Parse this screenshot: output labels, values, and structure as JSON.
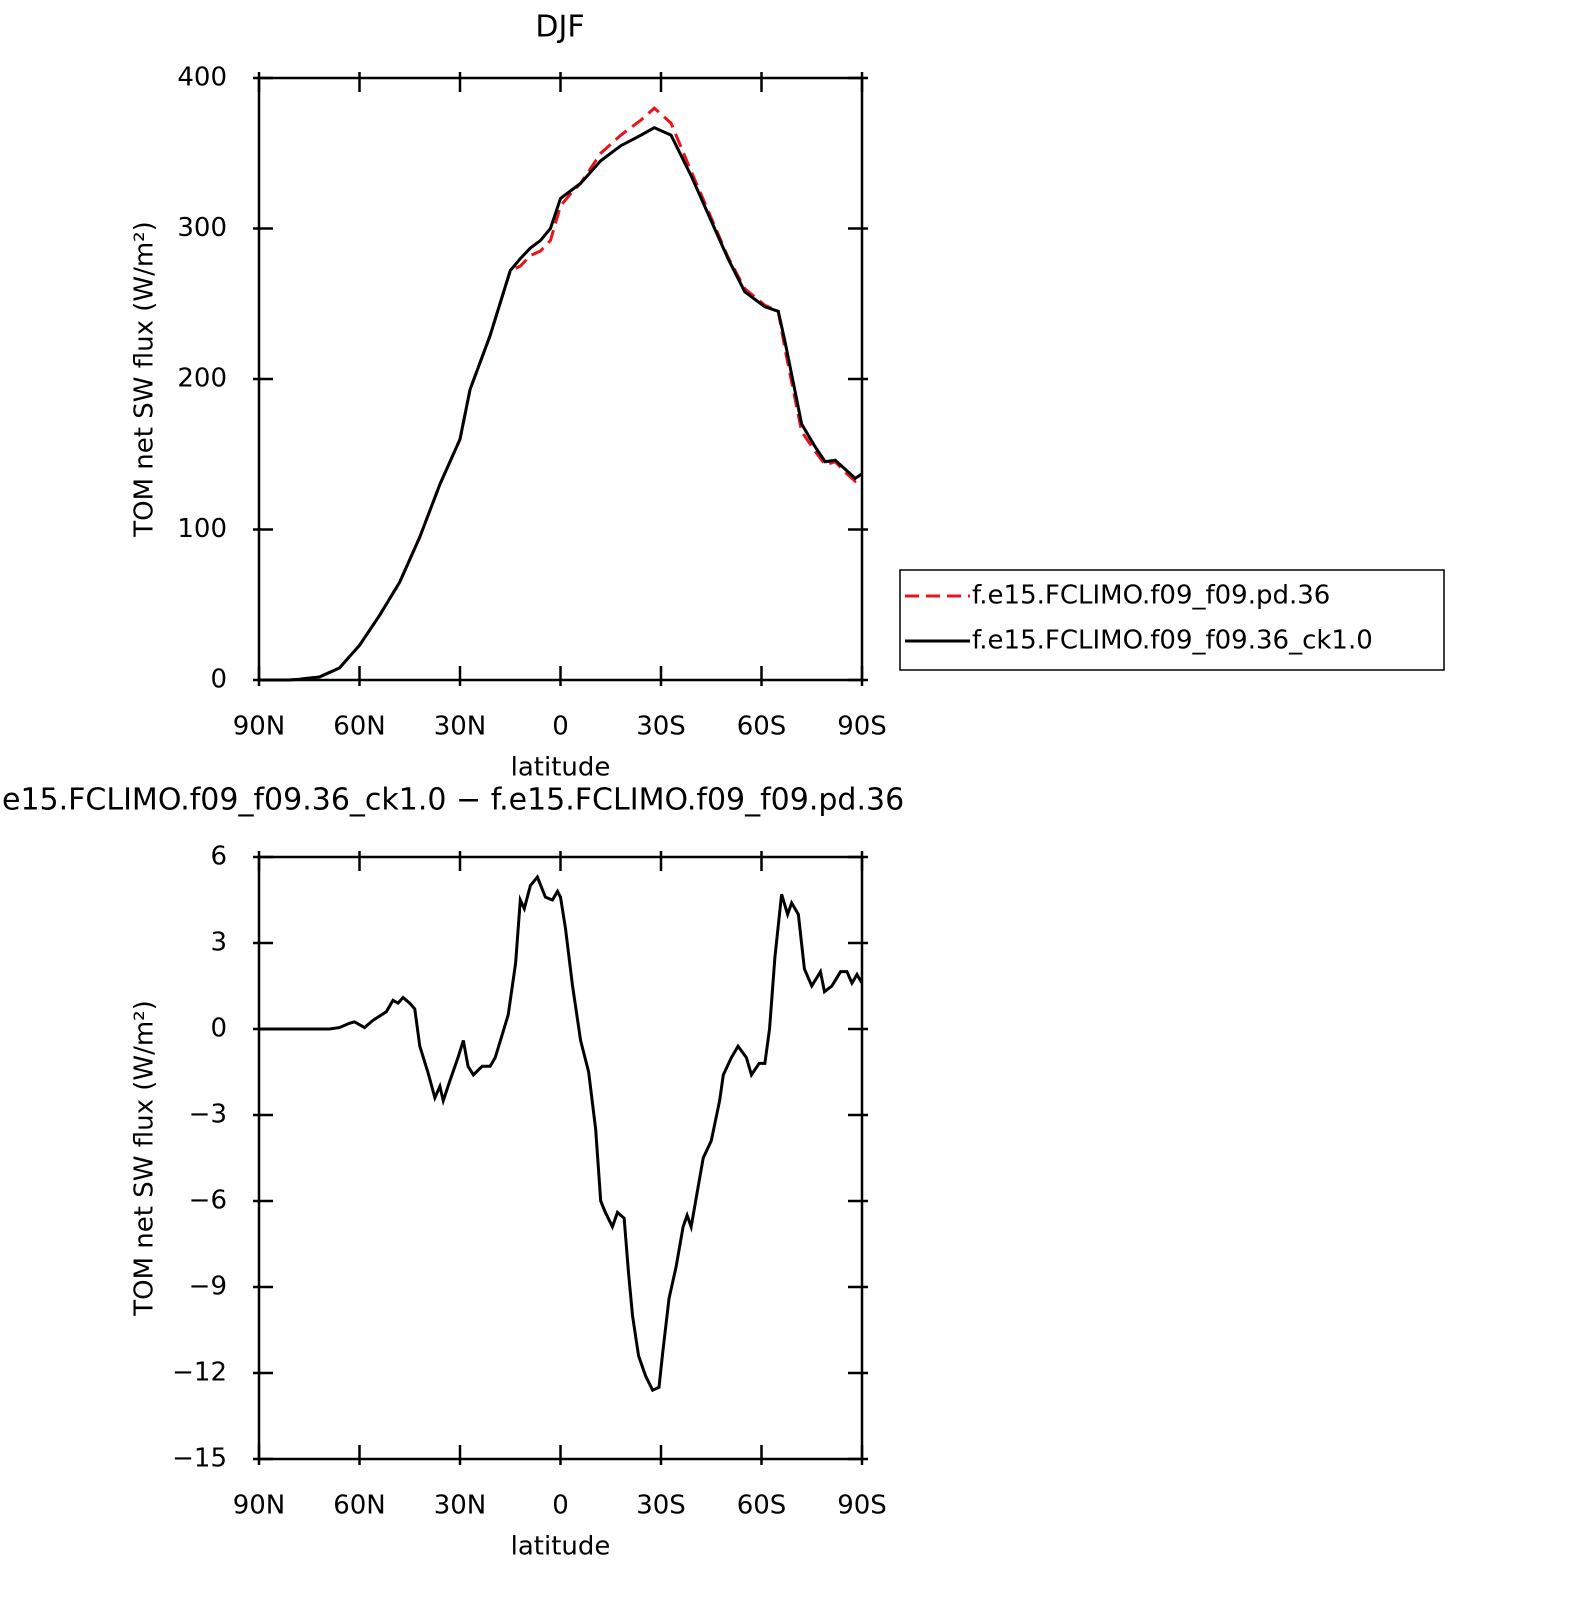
{
  "chart_data": [
    {
      "type": "line",
      "title": "DJF",
      "x_label": "latitude",
      "y_label": "TOM net SW flux (W/m²)",
      "xlim": [
        90,
        -90
      ],
      "xticks": [
        {
          "value": 90,
          "label": "90N"
        },
        {
          "value": 60,
          "label": "60N"
        },
        {
          "value": 30,
          "label": "30N"
        },
        0,
        {
          "value": -30,
          "label": "30S"
        },
        {
          "value": -60,
          "label": "60S"
        },
        {
          "value": -90,
          "label": "90S"
        }
      ],
      "ylim": [
        0,
        400
      ],
      "yticks": [
        0,
        100,
        200,
        300,
        400
      ],
      "legend": "right",
      "x": [
        90,
        81,
        78,
        72,
        66,
        60,
        54,
        48,
        42,
        36,
        30,
        27,
        21,
        15,
        12,
        9,
        6,
        3,
        0,
        -3,
        -6,
        -12,
        -18,
        -24,
        -28,
        -33,
        -39,
        -45,
        -50,
        -55,
        -61,
        -65,
        -67,
        -72,
        -76,
        -79,
        -82,
        -85,
        -88,
        -90
      ],
      "series": [
        {
          "name": "f.e15.FCLIMO.f09_f09.pd.36",
          "color": "#e8141a",
          "linestyle": "dashed",
          "values": [
            0,
            0,
            0.5,
            2,
            8,
            23,
            43,
            65,
            95,
            130,
            160,
            193,
            229,
            272,
            275,
            282,
            285,
            292,
            315,
            323,
            330,
            350,
            362,
            372,
            380,
            370,
            338,
            307,
            281,
            260,
            249,
            245,
            220,
            165,
            152,
            143,
            145,
            138,
            132,
            135
          ]
        },
        {
          "name": "f.e15.FCLIMO.f09_f09.36_ck1.0",
          "color": "#000000",
          "linestyle": "solid",
          "values": [
            0,
            0,
            0.5,
            2,
            8,
            23,
            43,
            65,
            95,
            130,
            160,
            193,
            229,
            272,
            280,
            287,
            292,
            300,
            320,
            325,
            330,
            345,
            355,
            362,
            367,
            362,
            335,
            305,
            280,
            258,
            248,
            245,
            225,
            170,
            155,
            145,
            146,
            140,
            134,
            137
          ]
        }
      ]
    },
    {
      "type": "line",
      "title": "e15.FCLIMO.f09_f09.36_ck1.0 − f.e15.FCLIMO.f09_f09.pd.36",
      "x_label": "latitude",
      "y_label": "TOM net SW flux (W/m²)",
      "xlim": [
        90,
        -90
      ],
      "xticks": [
        {
          "value": 90,
          "label": "90N"
        },
        {
          "value": 60,
          "label": "60N"
        },
        {
          "value": 30,
          "label": "30N"
        },
        0,
        {
          "value": -30,
          "label": "30S"
        },
        {
          "value": -60,
          "label": "60S"
        },
        {
          "value": -90,
          "label": "90S"
        }
      ],
      "ylim": [
        -15,
        6
      ],
      "yticks": [
        {
          "value": -15,
          "label": "−15"
        },
        {
          "value": -12,
          "label": "−12"
        },
        {
          "value": -9,
          "label": "−9"
        },
        {
          "value": -6,
          "label": "−6"
        },
        {
          "value": -3,
          "label": "−3"
        },
        0,
        3,
        6
      ],
      "color": "#000000",
      "linestyle": "solid",
      "x": [
        90,
        69,
        66,
        63,
        61.5,
        58.5,
        56,
        52,
        50,
        48.5,
        47,
        45,
        43.5,
        42,
        39.6,
        37.5,
        36,
        35,
        33,
        30.6,
        29,
        27.6,
        26,
        23.4,
        21,
        19.5,
        17.4,
        15.6,
        13.4,
        12,
        10.8,
        9,
        6.9,
        4.5,
        2.4,
        0.9,
        0,
        -1.5,
        -3.6,
        -6,
        -8.4,
        -10.5,
        -12,
        -13.4,
        -15.5,
        -17,
        -19,
        -20.3,
        -21.5,
        -23.3,
        -25.4,
        -27.5,
        -29.4,
        -30.5,
        -32.4,
        -34.5,
        -36.6,
        -37.8,
        -39,
        -40.5,
        -42.6,
        -45,
        -47.5,
        -48.6,
        -51,
        -53,
        -55.5,
        -57,
        -59.3,
        -61,
        -62.4,
        -64,
        -66,
        -67.8,
        -69,
        -71,
        -72.8,
        -75,
        -77.6,
        -78.8,
        -81,
        -83.6,
        -85.5,
        -87,
        -88.5,
        -90
      ],
      "values": [
        0,
        0,
        0.05,
        0.2,
        0.25,
        0.05,
        0.3,
        0.6,
        1.0,
        0.9,
        1.1,
        0.9,
        0.7,
        -0.6,
        -1.5,
        -2.4,
        -2.0,
        -2.5,
        -1.8,
        -1.0,
        -0.4,
        -1.3,
        -1.6,
        -1.3,
        -1.3,
        -1.0,
        -0.2,
        0.5,
        2.3,
        4.5,
        4.2,
        5.0,
        5.3,
        4.6,
        4.5,
        4.8,
        4.6,
        3.5,
        1.5,
        -0.4,
        -1.5,
        -3.5,
        -6.0,
        -6.4,
        -6.9,
        -6.4,
        -6.6,
        -8.5,
        -10.0,
        -11.4,
        -12.1,
        -12.6,
        -12.5,
        -11.3,
        -9.4,
        -8.3,
        -6.9,
        -6.5,
        -6.9,
        -5.9,
        -4.5,
        -3.9,
        -2.5,
        -1.6,
        -1.0,
        -0.6,
        -1.0,
        -1.6,
        -1.2,
        -1.2,
        0.0,
        2.5,
        4.7,
        4.0,
        4.4,
        4.0,
        2.1,
        1.5,
        2.0,
        1.3,
        1.5,
        2.0,
        2.0,
        1.6,
        1.9,
        1.6
      ]
    }
  ]
}
